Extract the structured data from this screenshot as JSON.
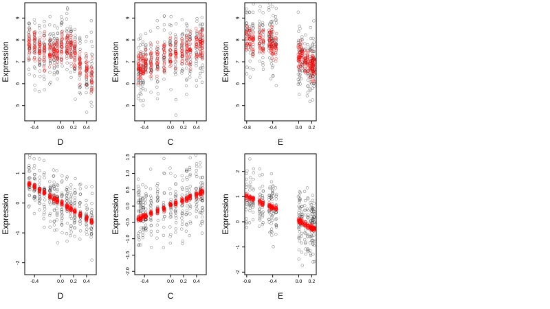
{
  "chart_data": [
    {
      "type": "scatter",
      "xlabel": "D",
      "ylabel": "Expression",
      "xlim": [
        -0.55,
        0.55
      ],
      "ylim": [
        4.3,
        9.7
      ],
      "xticks": [
        -0.4,
        0.0,
        0.2,
        0.4
      ],
      "xtick_labels": [
        "-0.4",
        "0.0",
        "0.2",
        "0.4"
      ],
      "yticks": [
        5,
        6,
        7,
        8,
        9
      ],
      "ytick_labels": [
        "5",
        "6",
        "7",
        "8",
        "9"
      ],
      "x_levels": [
        -0.48,
        -0.4,
        -0.32,
        -0.25,
        -0.16,
        -0.1,
        -0.05,
        0.02,
        0.1,
        0.16,
        0.22,
        0.3,
        0.4,
        0.48
      ],
      "observed_trend": [
        [
          -0.55,
          7.9
        ],
        [
          -0.3,
          7.6
        ],
        [
          -0.05,
          7.5
        ],
        [
          0.05,
          7.9
        ],
        [
          0.15,
          7.6
        ],
        [
          0.3,
          6.9
        ],
        [
          0.55,
          6.1
        ]
      ],
      "observed_sd": 0.8,
      "fitted_sd": 0.35,
      "series": [
        {
          "color": "#000000"
        },
        {
          "color": "#ff0000"
        }
      ]
    },
    {
      "type": "scatter",
      "xlabel": "C",
      "ylabel": "Expression",
      "xlim": [
        -0.55,
        0.55
      ],
      "ylim": [
        4.3,
        9.7
      ],
      "xticks": [
        -0.4,
        0.0,
        0.2,
        0.4
      ],
      "xtick_labels": [
        "-0.4",
        "0.0",
        "0.2",
        "0.4"
      ],
      "yticks": [
        5,
        6,
        7,
        8,
        9
      ],
      "ytick_labels": [
        "5",
        "6",
        "7",
        "8",
        "9"
      ],
      "x_levels": [
        -0.49,
        -0.46,
        -0.42,
        -0.38,
        -0.3,
        -0.2,
        -0.1,
        0.0,
        0.08,
        0.18,
        0.25,
        0.3,
        0.4,
        0.46,
        0.49
      ],
      "observed_trend": [
        [
          -0.55,
          6.7
        ],
        [
          0.0,
          7.3
        ],
        [
          0.55,
          7.8
        ]
      ],
      "observed_sd": 0.75,
      "fitted_sd": 0.35,
      "series": [
        {
          "color": "#000000"
        },
        {
          "color": "#ff0000"
        }
      ]
    },
    {
      "type": "scatter",
      "xlabel": "E",
      "ylabel": "Expression",
      "xlim": [
        -0.83,
        0.27
      ],
      "ylim": [
        4.3,
        9.7
      ],
      "xticks": [
        -0.8,
        -0.4,
        0.0,
        0.2
      ],
      "xtick_labels": [
        "-0.8",
        "-0.4",
        "0.0",
        "0.2"
      ],
      "yticks": [
        5,
        6,
        7,
        8,
        9
      ],
      "ytick_labels": [
        "5",
        "6",
        "7",
        "8",
        "9"
      ],
      "x_levels": [
        -0.8,
        -0.75,
        -0.7,
        -0.6,
        -0.55,
        -0.45,
        -0.42,
        -0.4,
        -0.35,
        0.0,
        0.02,
        0.05,
        0.1,
        0.14,
        0.18,
        0.2,
        0.22,
        0.24
      ],
      "observed_trend": [
        [
          -0.83,
          8.1
        ],
        [
          -0.35,
          7.8
        ],
        [
          0.0,
          7.3
        ],
        [
          0.27,
          6.8
        ]
      ],
      "observed_sd": 0.75,
      "fitted_sd": 0.35,
      "series": [
        {
          "color": "#000000"
        },
        {
          "color": "#ff0000"
        }
      ]
    },
    {
      "type": "scatter",
      "xlabel": "D",
      "ylabel": "Expression",
      "xlim": [
        -0.55,
        0.55
      ],
      "ylim": [
        -2.4,
        1.65
      ],
      "xticks": [
        -0.4,
        0.0,
        0.2,
        0.4
      ],
      "xtick_labels": [
        "-0.4",
        "0.0",
        "0.2",
        "0.4"
      ],
      "yticks": [
        -2,
        -1,
        0,
        1
      ],
      "ytick_labels": [
        "-2",
        "-1",
        "0",
        "1"
      ],
      "x_levels": [
        -0.48,
        -0.4,
        -0.32,
        -0.25,
        -0.16,
        -0.1,
        -0.05,
        0.02,
        0.1,
        0.16,
        0.22,
        0.3,
        0.4,
        0.48
      ],
      "observed_trend": [
        [
          -0.55,
          0.6
        ],
        [
          0.55,
          -0.5
        ]
      ],
      "fitted_trend": [
        [
          -0.48,
          0.65
        ],
        [
          0.5,
          -0.65
        ]
      ],
      "observed_sd": 0.55,
      "fitted_sd": 0.04,
      "series": [
        {
          "color": "#000000"
        },
        {
          "color": "#ff0000"
        }
      ]
    },
    {
      "type": "scatter",
      "xlabel": "C",
      "ylabel": "Expression",
      "xlim": [
        -0.55,
        0.55
      ],
      "ylim": [
        -2.1,
        1.6
      ],
      "xticks": [
        -0.4,
        0.0,
        0.2,
        0.4
      ],
      "xtick_labels": [
        "-0.4",
        "0.0",
        "0.2",
        "0.4"
      ],
      "yticks": [
        -2.0,
        -1.5,
        -1.0,
        -0.5,
        0.0,
        0.5,
        1.0,
        1.5
      ],
      "ytick_labels": [
        "-2.0",
        "-1.5",
        "-1.0",
        "-0.5",
        "0.0",
        "0.5",
        "1.0",
        "1.5"
      ],
      "x_levels": [
        -0.49,
        -0.46,
        -0.42,
        -0.38,
        -0.3,
        -0.2,
        -0.1,
        0.0,
        0.08,
        0.18,
        0.25,
        0.3,
        0.4,
        0.46,
        0.49
      ],
      "observed_trend": [
        [
          -0.55,
          -0.35
        ],
        [
          0.55,
          0.4
        ]
      ],
      "fitted_trend": [
        [
          -0.48,
          -0.38
        ],
        [
          0.49,
          0.42
        ]
      ],
      "observed_sd": 0.55,
      "fitted_sd": 0.04,
      "series": [
        {
          "color": "#000000"
        },
        {
          "color": "#ff0000"
        }
      ]
    },
    {
      "type": "scatter",
      "xlabel": "E",
      "ylabel": "Expression",
      "xlim": [
        -0.83,
        0.27
      ],
      "ylim": [
        -2.1,
        2.7
      ],
      "xticks": [
        -0.8,
        -0.4,
        0.0,
        0.2
      ],
      "xtick_labels": [
        "-0.8",
        "-0.4",
        "0.0",
        "0.2"
      ],
      "yticks": [
        -2,
        -1,
        0,
        1,
        2
      ],
      "ytick_labels": [
        "-2",
        "-1",
        "0",
        "1",
        "2"
      ],
      "x_levels": [
        -0.8,
        -0.75,
        -0.7,
        -0.6,
        -0.55,
        -0.45,
        -0.42,
        -0.4,
        -0.35,
        0.0,
        0.02,
        0.05,
        0.1,
        0.14,
        0.18,
        0.2,
        0.22,
        0.24
      ],
      "observed_trend": [
        [
          -0.83,
          1.0
        ],
        [
          -0.35,
          0.5
        ],
        [
          0.0,
          0.0
        ],
        [
          0.27,
          -0.3
        ]
      ],
      "fitted_trend": [
        [
          -0.8,
          1.0
        ],
        [
          -0.38,
          0.55
        ],
        [
          0.0,
          0.05
        ],
        [
          0.24,
          -0.3
        ]
      ],
      "observed_sd": 0.6,
      "fitted_sd": 0.05,
      "series": [
        {
          "color": "#000000"
        },
        {
          "color": "#ff0000"
        }
      ]
    }
  ]
}
